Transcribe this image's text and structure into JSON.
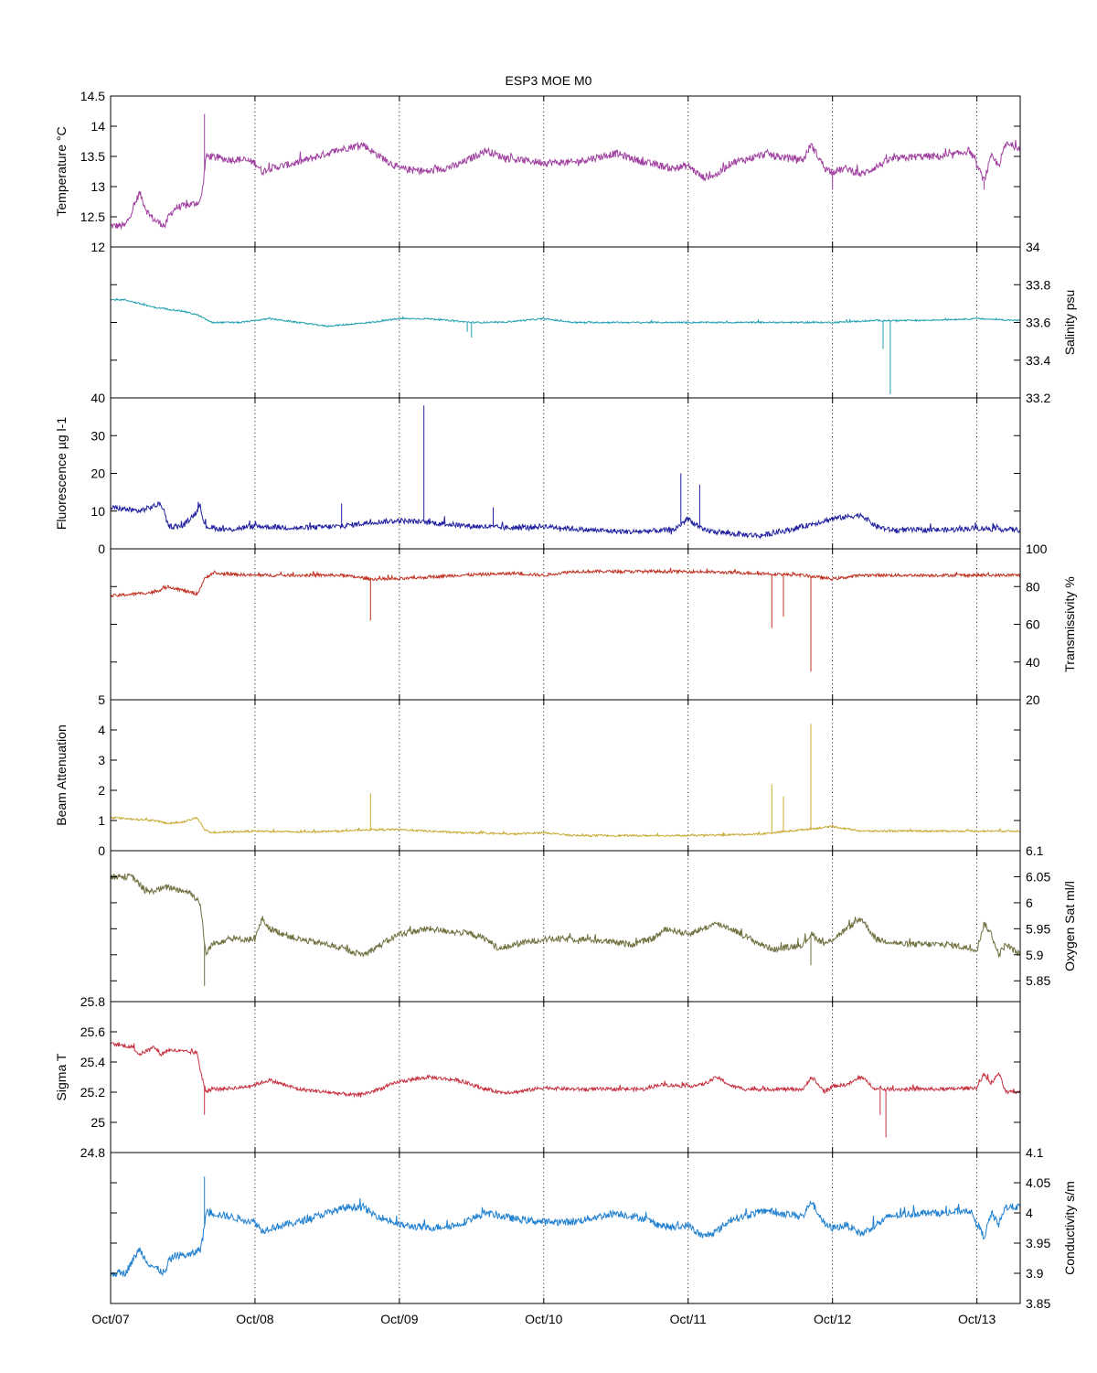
{
  "chart_data": {
    "type": "line",
    "title": "ESP3 MOE   M0",
    "x_axis": {
      "range": [
        "Oct/07",
        "Oct/13 + 0.3 day"
      ],
      "ticks": [
        "Oct/07",
        "Oct/08",
        "Oct/09",
        "Oct/10",
        "Oct/11",
        "Oct/12",
        "Oct/13"
      ],
      "tick_days": [
        0,
        1,
        2,
        3,
        4,
        5,
        6
      ],
      "xlim_days": [
        0,
        6.3
      ],
      "grid": "dotted vertical at each day"
    },
    "panels": [
      {
        "label": "Temperature °C",
        "axis_side": "left",
        "ylim": [
          12,
          14.5
        ],
        "ticks": [
          "12",
          "12.5",
          "13",
          "13.5",
          "14",
          "14.5"
        ],
        "tick_values": [
          12,
          12.5,
          13,
          13.5,
          14,
          14.5
        ],
        "color": "#a040a0",
        "noise": 0.06,
        "spikes": [
          [
            0.65,
            14.2
          ],
          [
            5.0,
            12.95
          ],
          [
            6.05,
            12.95
          ]
        ],
        "x": [
          0,
          0.1,
          0.15,
          0.2,
          0.25,
          0.3,
          0.38,
          0.4,
          0.45,
          0.55,
          0.62,
          0.64,
          0.66,
          0.7,
          0.8,
          0.9,
          1.0,
          1.05,
          1.1,
          1.3,
          1.5,
          1.65,
          1.75,
          1.8,
          2.0,
          2.2,
          2.4,
          2.6,
          2.7,
          2.8,
          3.0,
          3.2,
          3.5,
          3.7,
          3.8,
          3.9,
          4.0,
          4.1,
          4.2,
          4.3,
          4.4,
          4.55,
          4.6,
          4.8,
          4.85,
          4.95,
          5.0,
          5.1,
          5.2,
          5.4,
          5.6,
          5.8,
          5.95,
          6.05,
          6.1,
          6.15,
          6.2,
          6.3
        ],
        "y": [
          12.35,
          12.35,
          12.6,
          12.9,
          12.6,
          12.45,
          12.35,
          12.5,
          12.65,
          12.7,
          12.75,
          13.0,
          13.5,
          13.5,
          13.45,
          13.45,
          13.4,
          13.25,
          13.3,
          13.4,
          13.55,
          13.65,
          13.7,
          13.6,
          13.3,
          13.25,
          13.35,
          13.6,
          13.5,
          13.45,
          13.4,
          13.4,
          13.55,
          13.4,
          13.35,
          13.3,
          13.35,
          13.15,
          13.2,
          13.4,
          13.45,
          13.55,
          13.5,
          13.45,
          13.7,
          13.3,
          13.25,
          13.3,
          13.2,
          13.45,
          13.5,
          13.5,
          13.6,
          13.1,
          13.5,
          13.35,
          13.7,
          13.65
        ]
      },
      {
        "label": "Salinity psu",
        "axis_side": "right",
        "ylim": [
          33.2,
          34
        ],
        "ticks": [
          "33.2",
          "33.4",
          "33.6",
          "33.8",
          "34"
        ],
        "tick_values": [
          33.2,
          33.4,
          33.6,
          33.8,
          34
        ],
        "color": "#20a0b0",
        "noise": 0.004,
        "spikes": [
          [
            2.47,
            33.55
          ],
          [
            2.5,
            33.52
          ],
          [
            5.35,
            33.46
          ],
          [
            5.4,
            33.22
          ]
        ],
        "x": [
          0,
          0.1,
          0.2,
          0.3,
          0.5,
          0.6,
          0.7,
          0.9,
          1.1,
          1.3,
          1.5,
          1.8,
          2.0,
          2.2,
          2.5,
          2.7,
          3.0,
          3.2,
          3.5,
          3.8,
          4.0,
          4.3,
          4.6,
          5.0,
          5.3,
          5.6,
          6.0,
          6.3
        ],
        "y": [
          33.72,
          33.72,
          33.7,
          33.68,
          33.66,
          33.64,
          33.6,
          33.6,
          33.62,
          33.6,
          33.58,
          33.6,
          33.62,
          33.62,
          33.6,
          33.6,
          33.62,
          33.6,
          33.6,
          33.6,
          33.6,
          33.6,
          33.6,
          33.6,
          33.61,
          33.61,
          33.62,
          33.61
        ]
      },
      {
        "label": "Fluorescence µg l-1",
        "axis_side": "left",
        "ylim": [
          0,
          40
        ],
        "ticks": [
          "0",
          "10",
          "20",
          "30",
          "40"
        ],
        "tick_values": [
          0,
          10,
          20,
          30,
          40
        ],
        "color": "#2020a0",
        "noise": 0.7,
        "spikes": [
          [
            2.17,
            38
          ],
          [
            3.95,
            20
          ],
          [
            4.08,
            17
          ],
          [
            1.6,
            12
          ],
          [
            2.65,
            11
          ]
        ],
        "x": [
          0,
          0.2,
          0.35,
          0.4,
          0.5,
          0.6,
          0.62,
          0.65,
          0.8,
          1.0,
          1.3,
          1.6,
          1.8,
          2.0,
          2.2,
          2.5,
          2.8,
          3.0,
          3.3,
          3.6,
          3.9,
          4.0,
          4.1,
          4.2,
          4.3,
          4.5,
          4.7,
          4.9,
          5.0,
          5.2,
          5.3,
          5.4,
          5.6,
          5.8,
          6.0,
          6.3
        ],
        "y": [
          11,
          10,
          12,
          6,
          6,
          10,
          12,
          6,
          5,
          6,
          5.5,
          6,
          7,
          7.5,
          7,
          6,
          5.5,
          6,
          5,
          4.5,
          5,
          8,
          5,
          4.5,
          4,
          3.5,
          5,
          7,
          8,
          9,
          6,
          5,
          5,
          5,
          5.5,
          5
        ]
      },
      {
        "label": "Transmissivity %",
        "axis_side": "right",
        "ylim": [
          20,
          100
        ],
        "ticks": [
          "20",
          "40",
          "60",
          "80",
          "100"
        ],
        "tick_values": [
          20,
          40,
          60,
          80,
          100
        ],
        "color": "#c03020",
        "noise": 0.8,
        "spikes": [
          [
            1.8,
            62
          ],
          [
            4.58,
            58
          ],
          [
            4.66,
            64
          ],
          [
            4.85,
            35
          ]
        ],
        "x": [
          0,
          0.3,
          0.4,
          0.5,
          0.6,
          0.65,
          0.7,
          1.0,
          1.3,
          1.6,
          1.8,
          2.0,
          2.4,
          2.8,
          3.0,
          3.2,
          3.6,
          4.0,
          4.5,
          4.8,
          5.0,
          5.2,
          5.6,
          6.0,
          6.3
        ],
        "y": [
          75,
          77,
          80,
          78,
          76,
          84,
          87,
          86,
          86,
          86,
          84,
          84,
          86,
          87,
          86,
          88,
          88,
          88,
          87,
          86,
          84,
          86,
          86,
          86,
          86
        ]
      },
      {
        "label": "Beam Attenuation",
        "axis_side": "left",
        "ylim": [
          0,
          5
        ],
        "ticks": [
          "0",
          "1",
          "2",
          "3",
          "4",
          "5"
        ],
        "tick_values": [
          0,
          1,
          2,
          3,
          4,
          5
        ],
        "color": "#c8a830",
        "noise": 0.03,
        "spikes": [
          [
            1.8,
            1.9
          ],
          [
            4.58,
            2.2
          ],
          [
            4.66,
            1.8
          ],
          [
            4.85,
            4.2
          ]
        ],
        "x": [
          0,
          0.3,
          0.4,
          0.5,
          0.6,
          0.65,
          0.7,
          1.0,
          1.3,
          1.6,
          1.8,
          2.0,
          2.4,
          2.8,
          3.0,
          3.2,
          3.6,
          4.0,
          4.5,
          4.8,
          5.0,
          5.2,
          5.6,
          6.0,
          6.3
        ],
        "y": [
          1.1,
          1.0,
          0.9,
          0.95,
          1.1,
          0.7,
          0.6,
          0.65,
          0.62,
          0.65,
          0.7,
          0.7,
          0.6,
          0.55,
          0.6,
          0.5,
          0.5,
          0.5,
          0.55,
          0.7,
          0.8,
          0.65,
          0.65,
          0.65,
          0.65
        ]
      },
      {
        "label": "Oxygen Sat ml/l",
        "axis_side": "right",
        "ylim": [
          5.81,
          6.1
        ],
        "ticks": [
          "5.85",
          "5.9",
          "5.95",
          "6",
          "6.05",
          "6.1"
        ],
        "tick_values": [
          5.85,
          5.9,
          5.95,
          6,
          6.05,
          6.1
        ],
        "color": "#707040",
        "noise": 0.006,
        "spikes": [
          [
            0.65,
            5.84
          ],
          [
            4.85,
            5.88
          ]
        ],
        "x": [
          0,
          0.15,
          0.25,
          0.4,
          0.55,
          0.62,
          0.66,
          0.7,
          0.8,
          1.0,
          1.05,
          1.1,
          1.3,
          1.5,
          1.75,
          2.0,
          2.2,
          2.5,
          2.6,
          2.7,
          2.8,
          3.0,
          3.3,
          3.6,
          3.75,
          3.85,
          4.0,
          4.2,
          4.3,
          4.5,
          4.6,
          4.8,
          4.85,
          4.95,
          5.0,
          5.1,
          5.2,
          5.3,
          5.5,
          5.8,
          6.0,
          6.05,
          6.1,
          6.15,
          6.2,
          6.3
        ],
        "y": [
          6.05,
          6.05,
          6.02,
          6.03,
          6.02,
          6.0,
          5.9,
          5.92,
          5.93,
          5.93,
          5.97,
          5.95,
          5.93,
          5.92,
          5.9,
          5.94,
          5.95,
          5.94,
          5.93,
          5.91,
          5.92,
          5.93,
          5.93,
          5.92,
          5.93,
          5.95,
          5.94,
          5.96,
          5.95,
          5.92,
          5.91,
          5.92,
          5.94,
          5.92,
          5.93,
          5.95,
          5.97,
          5.93,
          5.92,
          5.92,
          5.91,
          5.96,
          5.94,
          5.9,
          5.92,
          5.9
        ]
      },
      {
        "label": "Sigma T",
        "axis_side": "left",
        "ylim": [
          24.8,
          25.8
        ],
        "ticks": [
          "24.8",
          "25",
          "25.2",
          "25.4",
          "25.6",
          "25.8"
        ],
        "tick_values": [
          24.8,
          25,
          25.2,
          25.4,
          25.6,
          25.8
        ],
        "color": "#c83040",
        "noise": 0.012,
        "spikes": [
          [
            0.65,
            25.05
          ],
          [
            5.37,
            24.9
          ],
          [
            5.33,
            25.05
          ]
        ],
        "x": [
          0,
          0.15,
          0.2,
          0.3,
          0.35,
          0.4,
          0.5,
          0.6,
          0.62,
          0.66,
          0.7,
          0.9,
          1.0,
          1.1,
          1.3,
          1.5,
          1.7,
          1.8,
          2.0,
          2.2,
          2.4,
          2.6,
          2.7,
          2.8,
          3.0,
          3.2,
          3.5,
          3.7,
          3.8,
          4.0,
          4.1,
          4.2,
          4.3,
          4.4,
          4.6,
          4.8,
          4.85,
          4.95,
          5.0,
          5.1,
          5.2,
          5.3,
          5.4,
          5.6,
          5.8,
          6.0,
          6.05,
          6.1,
          6.15,
          6.2,
          6.3
        ],
        "y": [
          25.52,
          25.5,
          25.45,
          25.5,
          25.45,
          25.48,
          25.47,
          25.46,
          25.35,
          25.2,
          25.22,
          25.23,
          25.25,
          25.28,
          25.22,
          25.2,
          25.18,
          25.2,
          25.27,
          25.3,
          25.28,
          25.22,
          25.2,
          25.2,
          25.23,
          25.22,
          25.22,
          25.22,
          25.25,
          25.24,
          25.25,
          25.3,
          25.24,
          25.22,
          25.22,
          25.22,
          25.3,
          25.2,
          25.24,
          25.25,
          25.3,
          25.22,
          25.22,
          25.22,
          25.22,
          25.23,
          25.32,
          25.25,
          25.33,
          25.2,
          25.2
        ]
      },
      {
        "label": "Conductivity s/m",
        "axis_side": "right",
        "ylim": [
          3.85,
          4.1
        ],
        "ticks": [
          "3.85",
          "3.9",
          "3.95",
          "4",
          "4.05",
          "4.1"
        ],
        "tick_values": [
          3.85,
          3.9,
          3.95,
          4,
          4.05,
          4.1
        ],
        "color": "#2080d0",
        "noise": 0.006,
        "spikes": [
          [
            0.65,
            4.06
          ]
        ],
        "x": [
          0,
          0.1,
          0.15,
          0.2,
          0.25,
          0.3,
          0.38,
          0.4,
          0.45,
          0.55,
          0.62,
          0.64,
          0.66,
          0.7,
          0.8,
          0.9,
          1.0,
          1.05,
          1.1,
          1.3,
          1.5,
          1.65,
          1.75,
          1.8,
          2.0,
          2.2,
          2.4,
          2.6,
          2.7,
          2.8,
          3.0,
          3.2,
          3.5,
          3.7,
          3.8,
          3.9,
          4.0,
          4.1,
          4.2,
          4.3,
          4.4,
          4.55,
          4.6,
          4.8,
          4.85,
          4.95,
          5.0,
          5.1,
          5.2,
          5.4,
          5.6,
          5.8,
          5.95,
          6.05,
          6.1,
          6.15,
          6.2,
          6.3
        ],
        "y": [
          3.9,
          3.9,
          3.92,
          3.94,
          3.92,
          3.91,
          3.9,
          3.92,
          3.93,
          3.93,
          3.94,
          3.96,
          4.0,
          4.0,
          3.995,
          3.99,
          3.985,
          3.97,
          3.975,
          3.985,
          4.0,
          4.01,
          4.01,
          4.0,
          3.98,
          3.975,
          3.98,
          4.0,
          3.995,
          3.99,
          3.985,
          3.985,
          4.0,
          3.99,
          3.98,
          3.975,
          3.98,
          3.96,
          3.97,
          3.99,
          3.995,
          4.005,
          4.0,
          3.995,
          4.02,
          3.98,
          3.975,
          3.98,
          3.965,
          3.995,
          4.0,
          4.0,
          4.005,
          3.96,
          4.0,
          3.98,
          4.01,
          4.01
        ]
      }
    ]
  }
}
